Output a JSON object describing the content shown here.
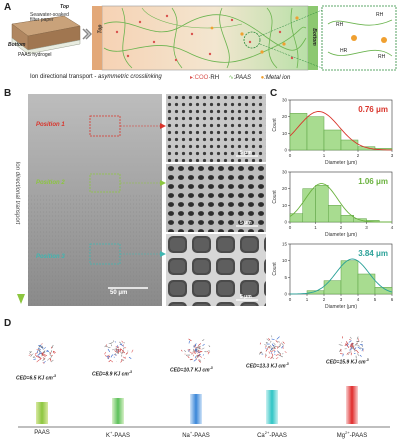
{
  "panelA": {
    "letter": "A",
    "paper_label": "Seawater-soaked filter paper",
    "top_label": "Top",
    "bottom_label": "Bottom",
    "hydrogel_label": "PAAS hydrogel",
    "band_top": "Top",
    "band_bottom": "Bottom",
    "caption_main": "Ion directional transport",
    "caption_sep": " - ",
    "caption_italic": "asymmetric crosslinking",
    "legend": {
      "coo_label": ":COO",
      "coo_suffix": "·RH",
      "paas_label": ":PAAS",
      "metal_label": ":Metal ion"
    },
    "zoom_labels": [
      "RH",
      "RH",
      "HR",
      "RH"
    ],
    "colors": {
      "top": "#f2c5a0",
      "bottom": "#a8d89a",
      "chain": "#6bb44f",
      "coo": "#d9534f",
      "metal": "#f0a030"
    }
  },
  "panelB": {
    "letter": "B",
    "side_label": "Ion directional transport",
    "positions": [
      "Position 1",
      "Position 2",
      "Position 3"
    ],
    "scale_main": "50 μm",
    "scale_insets": [
      "5 μm",
      "5 μm",
      "5 μm"
    ],
    "position_colors": [
      "#d9342b",
      "#8cc63f",
      "#3fb6b1"
    ]
  },
  "panelC": {
    "letter": "C",
    "ylabel": "Count",
    "xlabel": "Diameter (μm)"
  },
  "chart_data": [
    {
      "type": "bar",
      "annotation": "0.76 μm",
      "annotation_color": "#d9342b",
      "x": [
        0.25,
        0.75,
        1.25,
        1.75,
        2.25,
        2.75
      ],
      "values": [
        22,
        20,
        12,
        6,
        2,
        1
      ],
      "xlabel": "Diameter (μm)",
      "ylabel": "Count",
      "xlim": [
        0,
        3
      ],
      "ylim": [
        0,
        30
      ],
      "xticks": [
        0,
        1,
        2,
        3
      ],
      "yticks": [
        0,
        10,
        20,
        30
      ]
    },
    {
      "type": "bar",
      "annotation": "1.06 μm",
      "annotation_color": "#6ab23e",
      "x": [
        0.25,
        0.75,
        1.25,
        1.75,
        2.25,
        2.75,
        3.25
      ],
      "values": [
        5,
        20,
        22,
        10,
        4,
        2,
        1
      ],
      "xlabel": "Diameter (μm)",
      "ylabel": "Count",
      "xlim": [
        0,
        4
      ],
      "ylim": [
        0,
        30
      ],
      "xticks": [
        0,
        1,
        2,
        3,
        4
      ],
      "yticks": [
        0,
        10,
        20,
        30
      ]
    },
    {
      "type": "bar",
      "annotation": "3.84 μm",
      "annotation_color": "#2aa198",
      "x": [
        1.5,
        2.5,
        3.5,
        4.5,
        5.5
      ],
      "values": [
        1,
        4,
        10,
        6,
        2
      ],
      "xlabel": "Diameter (μm)",
      "ylabel": "Count",
      "xlim": [
        0,
        6
      ],
      "ylim": [
        0,
        15
      ],
      "xticks": [
        0,
        1,
        2,
        3,
        4,
        5,
        6
      ],
      "yticks": [
        0,
        5,
        10,
        15
      ]
    }
  ],
  "panelD": {
    "letter": "D",
    "items": [
      {
        "ced": "CED=6.5 KJ cm",
        "sup": "-3",
        "label": "PAAS",
        "label_sup": "",
        "c1": "#d8e8a0",
        "c2": "#8cc63f"
      },
      {
        "ced": "CED=8.9 KJ cm",
        "sup": "-3",
        "label": "K",
        "label_sup": "+",
        "label_tail": "-PAAS",
        "c1": "#d8f0c8",
        "c2": "#5cc05a"
      },
      {
        "ced": "CED=10.7 KJ cm",
        "sup": "-3",
        "label": "Na",
        "label_sup": "+",
        "label_tail": "-PAAS",
        "c1": "#d0e4f8",
        "c2": "#3a86d8"
      },
      {
        "ced": "CED=13.3 KJ cm",
        "sup": "-3",
        "label": "Ca",
        "label_sup": "2+",
        "label_tail": "-PAAS",
        "c1": "#c8f0f0",
        "c2": "#2ec4c4"
      },
      {
        "ced": "CED=15.9 KJ cm",
        "sup": "-3",
        "label": "Mg",
        "label_sup": "2+",
        "label_tail": "-PAAS",
        "c1": "#f8d0d0",
        "c2": "#e02a2a"
      }
    ]
  }
}
